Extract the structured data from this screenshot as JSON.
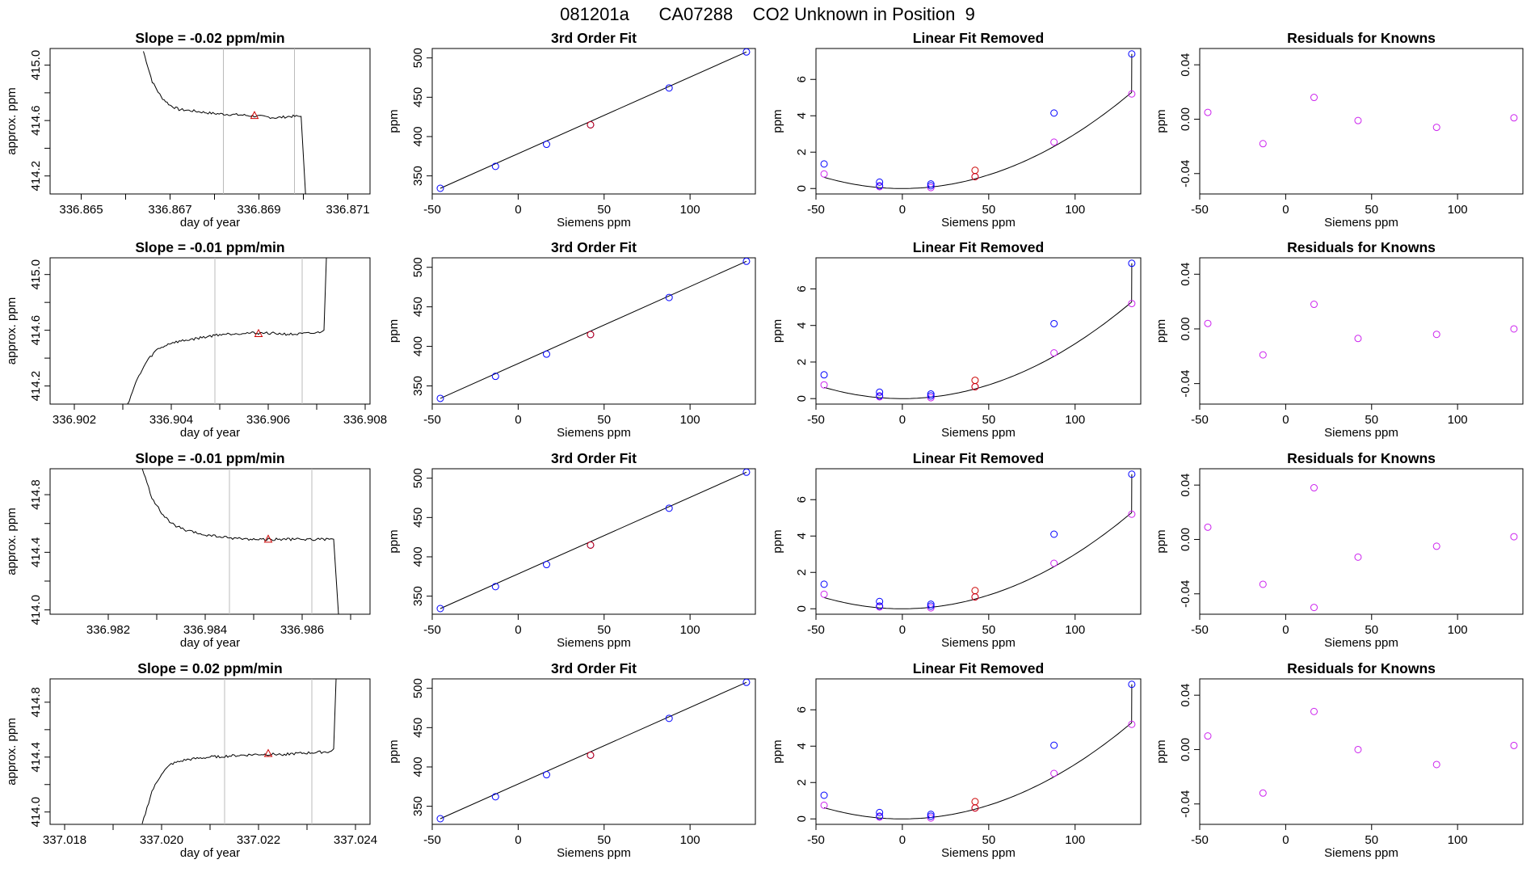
{
  "page_title": "081201a      CA07288    CO2 Unknown in Position  9",
  "colors": {
    "known": "#0000ff",
    "unknown": "#cc0000",
    "residual": "#cc22ee",
    "gridline": "#bbbbbb",
    "line": "#000000"
  },
  "chart_data": [
    {
      "type": "line",
      "panel": "timeseries",
      "row": 0,
      "title": "Slope =  -0.02  ppm/min",
      "xlabel": "day of year",
      "ylabel": "approx. ppm",
      "xlim": [
        336.8643,
        336.8715
      ],
      "ylim": [
        414.07,
        415.12
      ],
      "xticks": [
        336.865,
        336.866,
        336.867,
        336.868,
        336.869,
        336.87,
        336.871
      ],
      "xtick_labels": [
        "336.865",
        "",
        "336.867",
        "",
        "336.869",
        "",
        "336.871"
      ],
      "yticks": [
        414.2,
        414.4,
        414.6,
        414.8,
        415.0
      ],
      "ytick_labels": [
        "414.2",
        "",
        "414.6",
        "",
        "415.0"
      ],
      "vlines": [
        336.8682,
        336.8698
      ],
      "series": [
        {
          "name": "approx. ppm",
          "x": [
            336.8664,
            336.8666,
            336.8668,
            336.867,
            336.8672,
            336.8675,
            336.868,
            336.8686,
            336.869,
            336.8694,
            336.8697,
            336.86995,
            336.87005
          ],
          "y": [
            415.1,
            414.88,
            414.77,
            414.71,
            414.68,
            414.67,
            414.65,
            414.64,
            414.63,
            414.62,
            414.63,
            414.63,
            414.07
          ]
        }
      ],
      "marker": {
        "x": 336.8689,
        "y": 414.635
      }
    },
    {
      "type": "scatter",
      "panel": "fit3",
      "row": 0,
      "title": "3rd Order Fit",
      "xlabel": "Siemens ppm",
      "ylabel": "ppm",
      "xlim": [
        -50,
        138
      ],
      "ylim": [
        327,
        512
      ],
      "xticks": [
        -50,
        0,
        50,
        100
      ],
      "yticks": [
        350,
        400,
        450,
        500
      ],
      "knowns": {
        "x": [
          -45.3,
          -13.2,
          16.5,
          42.1,
          87.8,
          132.8
        ],
        "y": [
          334.2,
          362.1,
          390.2,
          415.0,
          461.8,
          507.6
        ]
      },
      "unknown": {
        "x": [
          42.1
        ],
        "y": [
          414.9
        ]
      },
      "fit_line": {
        "x": [
          -45.3,
          132.8
        ],
        "y": [
          334.2,
          507.6
        ]
      }
    },
    {
      "type": "scatter",
      "panel": "linear_removed",
      "row": 0,
      "title": "Linear Fit Removed",
      "xlabel": "Siemens ppm",
      "ylabel": "ppm",
      "xlim": [
        -50,
        138
      ],
      "ylim": [
        -0.3,
        7.7
      ],
      "xticks": [
        -50,
        0,
        50,
        100
      ],
      "yticks": [
        0,
        2,
        4,
        6
      ],
      "knowns": {
        "x": [
          -45.3,
          -13.2,
          -13.2,
          16.5,
          16.5,
          87.8,
          132.8
        ],
        "y": [
          1.35,
          0.35,
          0.15,
          0.25,
          0.15,
          4.15,
          7.4
        ]
      },
      "linear_residuals": {
        "x": [
          -45.3,
          -13.2,
          16.5,
          42.1,
          87.8,
          132.8
        ],
        "y": [
          0.8,
          0.1,
          0.05,
          0.65,
          2.55,
          5.2
        ]
      },
      "unknown": {
        "x": [
          42.1,
          42.1
        ],
        "y": [
          1.0,
          0.65
        ]
      },
      "fit_curve": {
        "coeffs": [
          0.0003,
          0.0003
        ]
      }
    },
    {
      "type": "scatter",
      "panel": "residuals",
      "row": 0,
      "title": "Residuals for Knowns",
      "xlabel": "Siemens ppm",
      "ylabel": "ppm",
      "xlim": [
        -50,
        138
      ],
      "ylim": [
        -0.055,
        0.052
      ],
      "xticks": [
        -50,
        0,
        50,
        100
      ],
      "yticks": [
        -0.04,
        0.0,
        0.04
      ],
      "ytick_labels": [
        "-0.04",
        "0.00",
        "0.04"
      ],
      "points": {
        "x": [
          -45.3,
          -13.2,
          16.5,
          42.1,
          87.8,
          132.8
        ],
        "y": [
          0.005,
          -0.018,
          0.016,
          -0.001,
          -0.006,
          0.001
        ]
      }
    },
    {
      "type": "line",
      "panel": "timeseries",
      "row": 1,
      "title": "Slope =  -0.01  ppm/min",
      "xlabel": "day of year",
      "ylabel": "approx. ppm",
      "xlim": [
        336.9015,
        336.9081
      ],
      "ylim": [
        414.07,
        415.12
      ],
      "xticks": [
        336.902,
        336.903,
        336.904,
        336.905,
        336.906,
        336.907,
        336.908
      ],
      "xtick_labels": [
        "336.902",
        "",
        "336.904",
        "",
        "336.906",
        "",
        "336.908"
      ],
      "yticks": [
        414.2,
        414.4,
        414.6,
        414.8,
        415.0
      ],
      "ytick_labels": [
        "414.2",
        "",
        "414.6",
        "",
        "415.0"
      ],
      "vlines": [
        336.9049,
        336.9067
      ],
      "series": [
        {
          "name": "approx. ppm",
          "x": [
            336.9031,
            336.9033,
            336.9035,
            336.9037,
            336.904,
            336.9045,
            336.905,
            336.9055,
            336.906,
            336.9065,
            336.907,
            336.90715,
            336.9072
          ],
          "y": [
            414.07,
            414.25,
            414.38,
            414.46,
            414.51,
            414.54,
            414.57,
            414.58,
            414.58,
            414.57,
            414.58,
            414.6,
            415.12
          ]
        }
      ],
      "marker": {
        "x": 336.9058,
        "y": 414.575
      }
    },
    {
      "type": "scatter",
      "panel": "fit3",
      "row": 1,
      "title": "3rd Order Fit",
      "xlabel": "Siemens ppm",
      "ylabel": "ppm",
      "xlim": [
        -50,
        138
      ],
      "ylim": [
        327,
        512
      ],
      "xticks": [
        -50,
        0,
        50,
        100
      ],
      "yticks": [
        350,
        400,
        450,
        500
      ],
      "knowns": {
        "x": [
          -45.3,
          -13.2,
          16.5,
          42.1,
          87.8,
          132.8
        ],
        "y": [
          334.2,
          362.1,
          390.2,
          415.0,
          461.8,
          507.6
        ]
      },
      "unknown": {
        "x": [
          42.1
        ],
        "y": [
          414.9
        ]
      },
      "fit_line": {
        "x": [
          -45.3,
          132.8
        ],
        "y": [
          334.2,
          507.6
        ]
      }
    },
    {
      "type": "scatter",
      "panel": "linear_removed",
      "row": 1,
      "title": "Linear Fit Removed",
      "xlabel": "Siemens ppm",
      "ylabel": "ppm",
      "xlim": [
        -50,
        138
      ],
      "ylim": [
        -0.3,
        7.7
      ],
      "xticks": [
        -50,
        0,
        50,
        100
      ],
      "yticks": [
        0,
        2,
        4,
        6
      ],
      "knowns": {
        "x": [
          -45.3,
          -13.2,
          -13.2,
          16.5,
          16.5,
          87.8,
          132.8
        ],
        "y": [
          1.3,
          0.35,
          0.15,
          0.25,
          0.15,
          4.1,
          7.4
        ]
      },
      "linear_residuals": {
        "x": [
          -45.3,
          -13.2,
          16.5,
          42.1,
          87.8,
          132.8
        ],
        "y": [
          0.75,
          0.1,
          0.05,
          0.65,
          2.5,
          5.2
        ]
      },
      "unknown": {
        "x": [
          42.1,
          42.1
        ],
        "y": [
          1.0,
          0.65
        ]
      },
      "fit_curve": {
        "coeffs": [
          0.0003,
          0.0003
        ]
      }
    },
    {
      "type": "scatter",
      "panel": "residuals",
      "row": 1,
      "title": "Residuals for Knowns",
      "xlabel": "Siemens ppm",
      "ylabel": "ppm",
      "xlim": [
        -50,
        138
      ],
      "ylim": [
        -0.055,
        0.052
      ],
      "xticks": [
        -50,
        0,
        50,
        100
      ],
      "yticks": [
        -0.04,
        0.0,
        0.04
      ],
      "ytick_labels": [
        "-0.04",
        "0.00",
        "0.04"
      ],
      "points": {
        "x": [
          -45.3,
          -13.2,
          16.5,
          42.1,
          87.8,
          132.8
        ],
        "y": [
          0.004,
          -0.019,
          0.018,
          -0.007,
          -0.004,
          0.0
        ]
      }
    },
    {
      "type": "line",
      "panel": "timeseries",
      "row": 2,
      "title": "Slope =  -0.01  ppm/min",
      "xlabel": "day of year",
      "ylabel": "approx. ppm",
      "xlim": [
        336.9808,
        336.9874
      ],
      "ylim": [
        413.97,
        414.98
      ],
      "xticks": [
        336.982,
        336.983,
        336.984,
        336.985,
        336.986,
        336.987
      ],
      "xtick_labels": [
        "336.982",
        "",
        "336.984",
        "",
        "336.986",
        ""
      ],
      "yticks": [
        414.0,
        414.2,
        414.4,
        414.6,
        414.8
      ],
      "ytick_labels": [
        "414.0",
        "",
        "414.4",
        "",
        "414.8"
      ],
      "vlines": [
        336.9845,
        336.9862
      ],
      "series": [
        {
          "name": "approx. ppm",
          "x": [
            336.9827,
            336.9829,
            336.9831,
            336.9833,
            336.9836,
            336.984,
            336.9845,
            336.985,
            336.9855,
            336.986,
            336.9865,
            336.98665,
            336.98675
          ],
          "y": [
            414.98,
            414.78,
            414.67,
            414.6,
            414.55,
            414.52,
            414.5,
            414.49,
            414.49,
            414.49,
            414.49,
            414.49,
            413.97
          ]
        }
      ],
      "marker": {
        "x": 336.9853,
        "y": 414.49
      }
    },
    {
      "type": "scatter",
      "panel": "fit3",
      "row": 2,
      "title": "3rd Order Fit",
      "xlabel": "Siemens ppm",
      "ylabel": "ppm",
      "xlim": [
        -50,
        138
      ],
      "ylim": [
        327,
        512
      ],
      "xticks": [
        -50,
        0,
        50,
        100
      ],
      "yticks": [
        350,
        400,
        450,
        500
      ],
      "knowns": {
        "x": [
          -45.3,
          -13.2,
          16.5,
          42.1,
          87.8,
          132.8
        ],
        "y": [
          334.2,
          362.1,
          390.2,
          415.0,
          461.8,
          507.6
        ]
      },
      "unknown": {
        "x": [
          42.1
        ],
        "y": [
          414.9
        ]
      },
      "fit_line": {
        "x": [
          -45.3,
          132.8
        ],
        "y": [
          334.2,
          507.6
        ]
      }
    },
    {
      "type": "scatter",
      "panel": "linear_removed",
      "row": 2,
      "title": "Linear Fit Removed",
      "xlabel": "Siemens ppm",
      "ylabel": "ppm",
      "xlim": [
        -50,
        138
      ],
      "ylim": [
        -0.3,
        7.7
      ],
      "xticks": [
        -50,
        0,
        50,
        100
      ],
      "yticks": [
        0,
        2,
        4,
        6
      ],
      "knowns": {
        "x": [
          -45.3,
          -13.2,
          -13.2,
          16.5,
          16.5,
          87.8,
          132.8
        ],
        "y": [
          1.35,
          0.4,
          0.15,
          0.25,
          0.15,
          4.1,
          7.4
        ]
      },
      "linear_residuals": {
        "x": [
          -45.3,
          -13.2,
          16.5,
          42.1,
          87.8,
          132.8
        ],
        "y": [
          0.8,
          0.1,
          0.05,
          0.65,
          2.5,
          5.2
        ]
      },
      "unknown": {
        "x": [
          42.1,
          42.1
        ],
        "y": [
          1.0,
          0.65
        ]
      },
      "fit_curve": {
        "coeffs": [
          0.0003,
          0.0003
        ]
      }
    },
    {
      "type": "scatter",
      "panel": "residuals",
      "row": 2,
      "title": "Residuals for Knowns",
      "xlabel": "Siemens ppm",
      "ylabel": "ppm",
      "xlim": [
        -50,
        138
      ],
      "ylim": [
        -0.055,
        0.052
      ],
      "xticks": [
        -50,
        0,
        50,
        100
      ],
      "yticks": [
        -0.04,
        0.0,
        0.04
      ],
      "ytick_labels": [
        "-0.04",
        "0.00",
        "0.04"
      ],
      "points": {
        "x": [
          -45.3,
          -13.2,
          16.5,
          16.5,
          42.1,
          87.8,
          132.8
        ],
        "y": [
          0.009,
          -0.033,
          0.038,
          -0.05,
          -0.013,
          -0.005,
          0.002
        ]
      }
    },
    {
      "type": "line",
      "panel": "timeseries",
      "row": 3,
      "title": "Slope =  0.02  ppm/min",
      "xlabel": "day of year",
      "ylabel": "approx. ppm",
      "xlim": [
        337.0177,
        337.0243
      ],
      "ylim": [
        413.91,
        414.97
      ],
      "xticks": [
        337.018,
        337.019,
        337.02,
        337.021,
        337.022,
        337.023,
        337.024
      ],
      "xtick_labels": [
        "337.018",
        "",
        "337.020",
        "",
        "337.022",
        "",
        "337.024"
      ],
      "yticks": [
        414.0,
        414.2,
        414.4,
        414.6,
        414.8
      ],
      "ytick_labels": [
        "414.0",
        "",
        "414.4",
        "",
        "414.8"
      ],
      "vlines": [
        337.0213,
        337.0231
      ],
      "series": [
        {
          "name": "approx. ppm",
          "x": [
            337.0196,
            337.0198,
            337.02,
            337.0202,
            337.0205,
            337.021,
            337.0215,
            337.022,
            337.0225,
            337.023,
            337.0235,
            337.02355,
            337.0236
          ],
          "y": [
            413.91,
            414.15,
            414.28,
            414.35,
            414.38,
            414.4,
            414.41,
            414.42,
            414.42,
            414.43,
            414.44,
            414.46,
            414.97
          ]
        }
      ],
      "marker": {
        "x": 337.0222,
        "y": 414.425
      }
    },
    {
      "type": "scatter",
      "panel": "fit3",
      "row": 3,
      "title": "3rd Order Fit",
      "xlabel": "Siemens ppm",
      "ylabel": "ppm",
      "xlim": [
        -50,
        138
      ],
      "ylim": [
        327,
        512
      ],
      "xticks": [
        -50,
        0,
        50,
        100
      ],
      "yticks": [
        350,
        400,
        450,
        500
      ],
      "knowns": {
        "x": [
          -45.3,
          -13.2,
          16.5,
          42.1,
          87.8,
          132.8
        ],
        "y": [
          334.2,
          362.1,
          390.2,
          415.0,
          461.8,
          507.6
        ]
      },
      "unknown": {
        "x": [
          42.1
        ],
        "y": [
          414.9
        ]
      },
      "fit_line": {
        "x": [
          -45.3,
          132.8
        ],
        "y": [
          334.2,
          507.6
        ]
      }
    },
    {
      "type": "scatter",
      "panel": "linear_removed",
      "row": 3,
      "title": "Linear Fit Removed",
      "xlabel": "Siemens ppm",
      "ylabel": "ppm",
      "xlim": [
        -50,
        138
      ],
      "ylim": [
        -0.3,
        7.7
      ],
      "xticks": [
        -50,
        0,
        50,
        100
      ],
      "yticks": [
        0,
        2,
        4,
        6
      ],
      "knowns": {
        "x": [
          -45.3,
          -13.2,
          -13.2,
          16.5,
          16.5,
          87.8,
          132.8
        ],
        "y": [
          1.3,
          0.35,
          0.15,
          0.25,
          0.15,
          4.05,
          7.4
        ]
      },
      "linear_residuals": {
        "x": [
          -45.3,
          -13.2,
          16.5,
          42.1,
          87.8,
          132.8
        ],
        "y": [
          0.75,
          0.1,
          0.05,
          0.6,
          2.5,
          5.2
        ]
      },
      "unknown": {
        "x": [
          42.1,
          42.1
        ],
        "y": [
          0.95,
          0.6
        ]
      },
      "fit_curve": {
        "coeffs": [
          0.0003,
          0.0003
        ]
      }
    },
    {
      "type": "scatter",
      "panel": "residuals",
      "row": 3,
      "title": "Residuals for Knowns",
      "xlabel": "Siemens ppm",
      "ylabel": "ppm",
      "xlim": [
        -50,
        138
      ],
      "ylim": [
        -0.055,
        0.052
      ],
      "xticks": [
        -50,
        0,
        50,
        100
      ],
      "yticks": [
        -0.04,
        0.0,
        0.04
      ],
      "ytick_labels": [
        "-0.04",
        "0.00",
        "0.04"
      ],
      "points": {
        "x": [
          -45.3,
          -13.2,
          16.5,
          42.1,
          87.8,
          132.8
        ],
        "y": [
          0.01,
          -0.032,
          0.028,
          0.0,
          -0.011,
          0.003
        ]
      }
    }
  ]
}
